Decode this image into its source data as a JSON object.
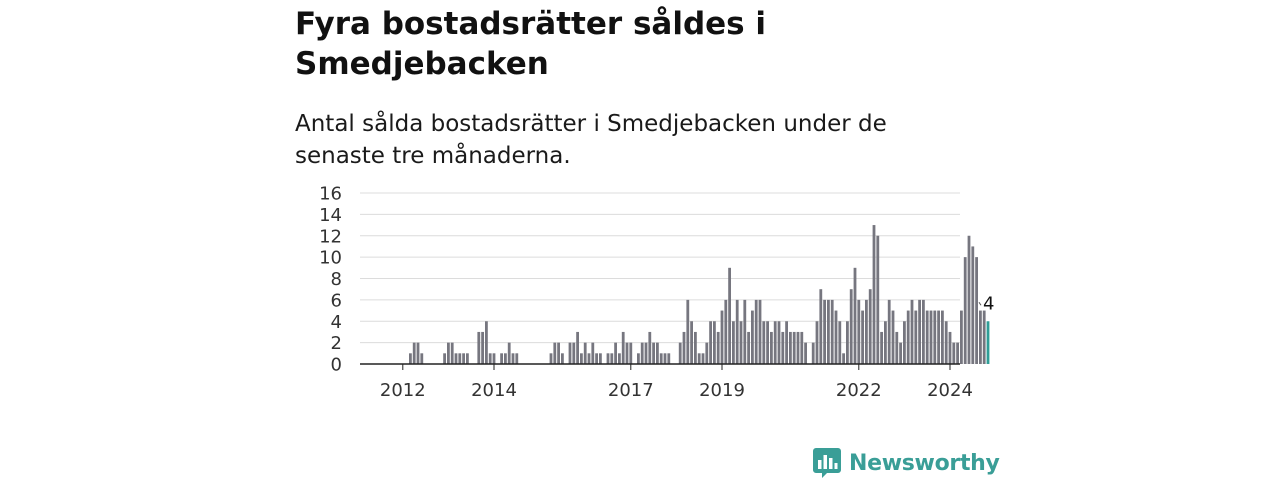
{
  "title": "Fyra bostadsrätter såldes i Smedjebacken",
  "subtitle": "Antal sålda bostadsrätter i Smedjebacken under de senaste tre månaderna.",
  "brand": {
    "name": "Newsworthy",
    "color": "#3a9e97"
  },
  "colors": {
    "bars": "#76767f",
    "highlight": "#2f9e97",
    "grid": "#dcdcdc",
    "axis": "#222222"
  },
  "chart_data": {
    "type": "bar",
    "x_start": "2012-01",
    "x_end": "2025-03",
    "ylim": [
      0,
      16
    ],
    "yticks": [
      0,
      2,
      4,
      6,
      8,
      10,
      12,
      14,
      16
    ],
    "xticks": [
      "2012",
      "2014",
      "2017",
      "2019",
      "2022",
      "2024"
    ],
    "xtick_months": [
      "2012-07",
      "2014-07",
      "2017-07",
      "2019-07",
      "2022-07",
      "2024-07"
    ],
    "highlight_label": "4",
    "bars": [
      {
        "month": "2012-09",
        "value": 1
      },
      {
        "month": "2012-10",
        "value": 2
      },
      {
        "month": "2012-11",
        "value": 2
      },
      {
        "month": "2012-12",
        "value": 1
      },
      {
        "month": "2013-06",
        "value": 1
      },
      {
        "month": "2013-07",
        "value": 2
      },
      {
        "month": "2013-08",
        "value": 2
      },
      {
        "month": "2013-09",
        "value": 1
      },
      {
        "month": "2013-10",
        "value": 1
      },
      {
        "month": "2013-11",
        "value": 1
      },
      {
        "month": "2013-12",
        "value": 1
      },
      {
        "month": "2014-03",
        "value": 3
      },
      {
        "month": "2014-04",
        "value": 3
      },
      {
        "month": "2014-05",
        "value": 4
      },
      {
        "month": "2014-06",
        "value": 1
      },
      {
        "month": "2014-07",
        "value": 1
      },
      {
        "month": "2014-09",
        "value": 1
      },
      {
        "month": "2014-10",
        "value": 1
      },
      {
        "month": "2014-11",
        "value": 2
      },
      {
        "month": "2014-12",
        "value": 1
      },
      {
        "month": "2015-01",
        "value": 1
      },
      {
        "month": "2015-10",
        "value": 1
      },
      {
        "month": "2015-11",
        "value": 2
      },
      {
        "month": "2015-12",
        "value": 2
      },
      {
        "month": "2016-01",
        "value": 1
      },
      {
        "month": "2016-03",
        "value": 2
      },
      {
        "month": "2016-04",
        "value": 2
      },
      {
        "month": "2016-05",
        "value": 3
      },
      {
        "month": "2016-06",
        "value": 1
      },
      {
        "month": "2016-07",
        "value": 2
      },
      {
        "month": "2016-08",
        "value": 1
      },
      {
        "month": "2016-09",
        "value": 2
      },
      {
        "month": "2016-10",
        "value": 1
      },
      {
        "month": "2016-11",
        "value": 1
      },
      {
        "month": "2017-01",
        "value": 1
      },
      {
        "month": "2017-02",
        "value": 1
      },
      {
        "month": "2017-03",
        "value": 2
      },
      {
        "month": "2017-04",
        "value": 1
      },
      {
        "month": "2017-05",
        "value": 3
      },
      {
        "month": "2017-06",
        "value": 2
      },
      {
        "month": "2017-07",
        "value": 2
      },
      {
        "month": "2017-09",
        "value": 1
      },
      {
        "month": "2017-10",
        "value": 2
      },
      {
        "month": "2017-11",
        "value": 2
      },
      {
        "month": "2017-12",
        "value": 3
      },
      {
        "month": "2018-01",
        "value": 2
      },
      {
        "month": "2018-02",
        "value": 2
      },
      {
        "month": "2018-03",
        "value": 1
      },
      {
        "month": "2018-04",
        "value": 1
      },
      {
        "month": "2018-05",
        "value": 1
      },
      {
        "month": "2018-08",
        "value": 2
      },
      {
        "month": "2018-09",
        "value": 3
      },
      {
        "month": "2018-10",
        "value": 6
      },
      {
        "month": "2018-11",
        "value": 4
      },
      {
        "month": "2018-12",
        "value": 3
      },
      {
        "month": "2019-01",
        "value": 1
      },
      {
        "month": "2019-02",
        "value": 1
      },
      {
        "month": "2019-03",
        "value": 2
      },
      {
        "month": "2019-04",
        "value": 4
      },
      {
        "month": "2019-05",
        "value": 4
      },
      {
        "month": "2019-06",
        "value": 3
      },
      {
        "month": "2019-07",
        "value": 5
      },
      {
        "month": "2019-08",
        "value": 6
      },
      {
        "month": "2019-09",
        "value": 9
      },
      {
        "month": "2019-10",
        "value": 4
      },
      {
        "month": "2019-11",
        "value": 6
      },
      {
        "month": "2019-12",
        "value": 4
      },
      {
        "month": "2020-01",
        "value": 6
      },
      {
        "month": "2020-02",
        "value": 3
      },
      {
        "month": "2020-03",
        "value": 5
      },
      {
        "month": "2020-04",
        "value": 6
      },
      {
        "month": "2020-05",
        "value": 6
      },
      {
        "month": "2020-06",
        "value": 4
      },
      {
        "month": "2020-07",
        "value": 4
      },
      {
        "month": "2020-08",
        "value": 3
      },
      {
        "month": "2020-09",
        "value": 4
      },
      {
        "month": "2020-10",
        "value": 4
      },
      {
        "month": "2020-11",
        "value": 3
      },
      {
        "month": "2020-12",
        "value": 4
      },
      {
        "month": "2021-01",
        "value": 3
      },
      {
        "month": "2021-02",
        "value": 3
      },
      {
        "month": "2021-03",
        "value": 3
      },
      {
        "month": "2021-04",
        "value": 3
      },
      {
        "month": "2021-05",
        "value": 2
      },
      {
        "month": "2021-07",
        "value": 2
      },
      {
        "month": "2021-08",
        "value": 4
      },
      {
        "month": "2021-09",
        "value": 7
      },
      {
        "month": "2021-10",
        "value": 6
      },
      {
        "month": "2021-11",
        "value": 6
      },
      {
        "month": "2021-12",
        "value": 6
      },
      {
        "month": "2022-01",
        "value": 5
      },
      {
        "month": "2022-02",
        "value": 4
      },
      {
        "month": "2022-03",
        "value": 1
      },
      {
        "month": "2022-04",
        "value": 4
      },
      {
        "month": "2022-05",
        "value": 7
      },
      {
        "month": "2022-06",
        "value": 9
      },
      {
        "month": "2022-07",
        "value": 6
      },
      {
        "month": "2022-08",
        "value": 5
      },
      {
        "month": "2022-09",
        "value": 6
      },
      {
        "month": "2022-10",
        "value": 7
      },
      {
        "month": "2022-11",
        "value": 13
      },
      {
        "month": "2022-12",
        "value": 12
      },
      {
        "month": "2023-01",
        "value": 3
      },
      {
        "month": "2023-02",
        "value": 4
      },
      {
        "month": "2023-03",
        "value": 6
      },
      {
        "month": "2023-04",
        "value": 5
      },
      {
        "month": "2023-05",
        "value": 3
      },
      {
        "month": "2023-06",
        "value": 2
      },
      {
        "month": "2023-07",
        "value": 4
      },
      {
        "month": "2023-08",
        "value": 5
      },
      {
        "month": "2023-09",
        "value": 6
      },
      {
        "month": "2023-10",
        "value": 5
      },
      {
        "month": "2023-11",
        "value": 6
      },
      {
        "month": "2023-12",
        "value": 6
      },
      {
        "month": "2024-01",
        "value": 5
      },
      {
        "month": "2024-02",
        "value": 5
      },
      {
        "month": "2024-03",
        "value": 5
      },
      {
        "month": "2024-04",
        "value": 5
      },
      {
        "month": "2024-05",
        "value": 5
      },
      {
        "month": "2024-06",
        "value": 4
      },
      {
        "month": "2024-07",
        "value": 3
      },
      {
        "month": "2024-08",
        "value": 2
      },
      {
        "month": "2024-09",
        "value": 2
      },
      {
        "month": "2024-10",
        "value": 5
      },
      {
        "month": "2024-11",
        "value": 10
      },
      {
        "month": "2024-12",
        "value": 12
      },
      {
        "month": "2025-01",
        "value": 11
      },
      {
        "month": "2025-02",
        "value": 10
      },
      {
        "month": "2025-03",
        "value": 5
      },
      {
        "month": "2025-04",
        "value": 5
      },
      {
        "month": "2025-05",
        "value": 4,
        "highlight": true
      }
    ]
  }
}
